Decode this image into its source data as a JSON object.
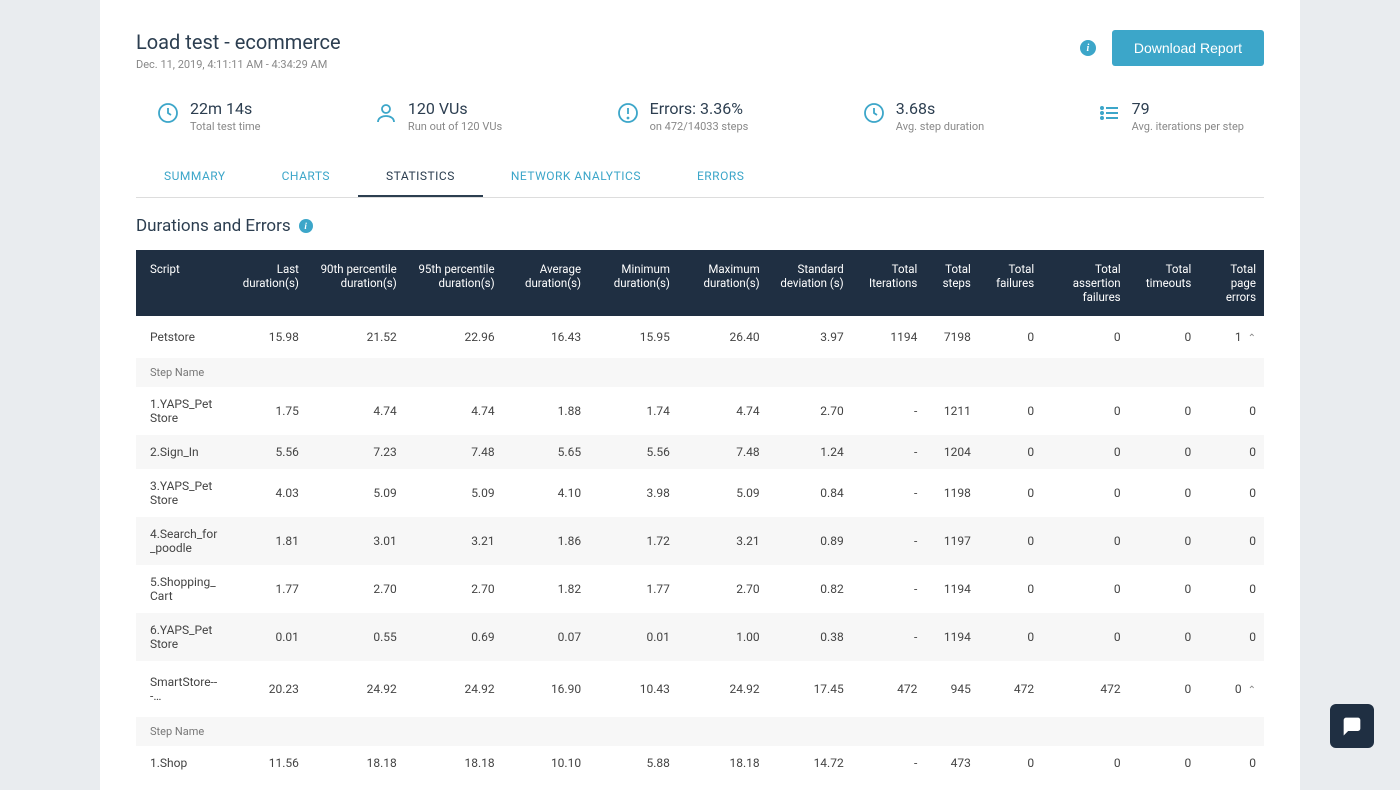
{
  "colors": {
    "accent": "#3ca6c9",
    "dark_header": "#1f2f42",
    "text": "#2c3e50",
    "muted": "#888",
    "page_bg": "#e9ecef",
    "row_alt": "#f7f7f7"
  },
  "header": {
    "title": "Load test - ecommerce",
    "subtitle": "Dec. 11, 2019, 4:11:11 AM - 4:34:29 AM",
    "download_label": "Download Report"
  },
  "metrics": [
    {
      "icon": "clock",
      "value": "22m 14s",
      "label": "Total test time"
    },
    {
      "icon": "user",
      "value": "120 VUs",
      "label": "Run out of 120 VUs"
    },
    {
      "icon": "alert",
      "value": "Errors: 3.36%",
      "label": "on 472/14033 steps"
    },
    {
      "icon": "clock",
      "value": "3.68s",
      "label": "Avg. step duration"
    },
    {
      "icon": "list",
      "value": "79",
      "label": "Avg. iterations per step"
    }
  ],
  "tabs": [
    {
      "label": "SUMMARY",
      "active": false
    },
    {
      "label": "CHARTS",
      "active": false
    },
    {
      "label": "STATISTICS",
      "active": true
    },
    {
      "label": "NETWORK ANALYTICS",
      "active": false
    },
    {
      "label": "ERRORS",
      "active": false
    }
  ],
  "section": {
    "title": "Durations and Errors"
  },
  "table": {
    "columns": [
      "Script",
      "Last duration(s)",
      "90th percentile duration(s)",
      "95th percentile duration(s)",
      "Average duration(s)",
      "Minimum duration(s)",
      "Maximum duration(s)",
      "Standard deviation (s)",
      "Total Iterations",
      "Total steps",
      "Total failures",
      "Total assertion failures",
      "Total timeouts",
      "Total page errors"
    ],
    "groups": [
      {
        "name": "Petstore",
        "row": [
          "Petstore",
          "15.98",
          "21.52",
          "22.96",
          "16.43",
          "15.95",
          "26.40",
          "3.97",
          "1194",
          "7198",
          "0",
          "0",
          "0",
          "1"
        ],
        "step_header": "Step Name",
        "steps": [
          [
            "1.YAPS_PetStore",
            "1.75",
            "4.74",
            "4.74",
            "1.88",
            "1.74",
            "4.74",
            "2.70",
            "-",
            "1211",
            "0",
            "0",
            "0",
            "0"
          ],
          [
            "2.Sign_In",
            "5.56",
            "7.23",
            "7.48",
            "5.65",
            "5.56",
            "7.48",
            "1.24",
            "-",
            "1204",
            "0",
            "0",
            "0",
            "0"
          ],
          [
            "3.YAPS_PetStore",
            "4.03",
            "5.09",
            "5.09",
            "4.10",
            "3.98",
            "5.09",
            "0.84",
            "-",
            "1198",
            "0",
            "0",
            "0",
            "0"
          ],
          [
            "4.Search_for_poodle",
            "1.81",
            "3.01",
            "3.21",
            "1.86",
            "1.72",
            "3.21",
            "0.89",
            "-",
            "1197",
            "0",
            "0",
            "0",
            "0"
          ],
          [
            "5.Shopping_Cart",
            "1.77",
            "2.70",
            "2.70",
            "1.82",
            "1.77",
            "2.70",
            "0.82",
            "-",
            "1194",
            "0",
            "0",
            "0",
            "0"
          ],
          [
            "6.YAPS_PetStore",
            "0.01",
            "0.55",
            "0.69",
            "0.07",
            "0.01",
            "1.00",
            "0.38",
            "-",
            "1194",
            "0",
            "0",
            "0",
            "0"
          ]
        ]
      },
      {
        "name": "SmartStore---…",
        "row": [
          "SmartStore---…",
          "20.23",
          "24.92",
          "24.92",
          "16.90",
          "10.43",
          "24.92",
          "17.45",
          "472",
          "945",
          "472",
          "472",
          "0",
          "0"
        ],
        "step_header": "Step Name",
        "steps": [
          [
            "1.Shop",
            "11.56",
            "18.18",
            "18.18",
            "10.10",
            "5.88",
            "18.18",
            "14.72",
            "-",
            "473",
            "0",
            "0",
            "0",
            "0"
          ]
        ]
      }
    ]
  }
}
